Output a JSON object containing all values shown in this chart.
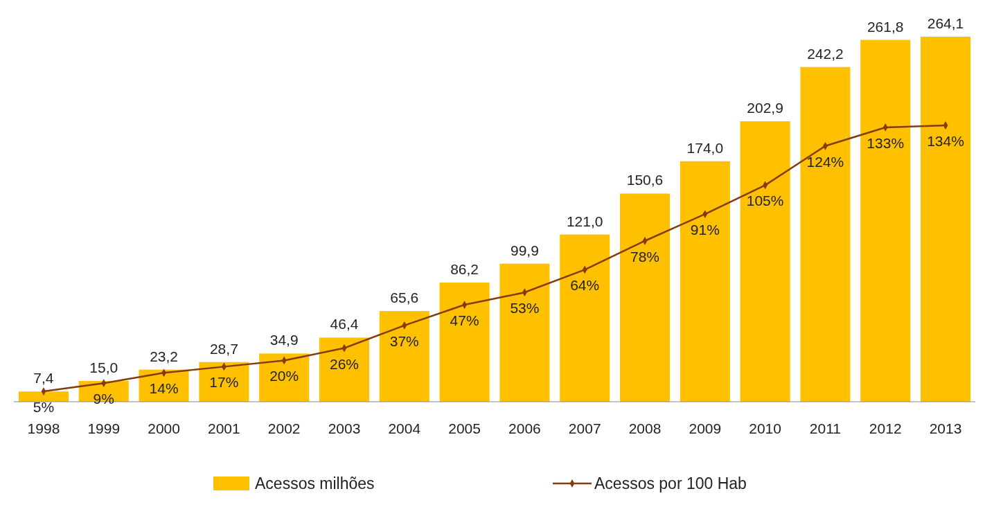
{
  "chart_data": {
    "type": "bar",
    "categories": [
      "1998",
      "1999",
      "2000",
      "2001",
      "2002",
      "2003",
      "2004",
      "2005",
      "2006",
      "2007",
      "2008",
      "2009",
      "2010",
      "2011",
      "2012",
      "2013"
    ],
    "series": [
      {
        "name": "Acessos milhões",
        "color": "#ffc000",
        "values": [
          7.4,
          15.0,
          23.2,
          28.7,
          34.9,
          46.4,
          65.6,
          86.2,
          99.9,
          121.0,
          150.6,
          174.0,
          202.9,
          242.2,
          261.8,
          264.1
        ],
        "value_labels": [
          "7,4",
          "15,0",
          "23,2",
          "28,7",
          "34,9",
          "46,4",
          "65,6",
          "86,2",
          "99,9",
          "121,0",
          "150,6",
          "174,0",
          "202,9",
          "242,2",
          "261,8",
          "264,1"
        ]
      },
      {
        "name": "Acessos por 100 Hab",
        "type": "line",
        "axis": "y2",
        "color": "#843c0c",
        "values": [
          5,
          9,
          14,
          17,
          20,
          26,
          37,
          47,
          53,
          64,
          78,
          91,
          105,
          124,
          133,
          134
        ],
        "value_labels": [
          "5%",
          "9%",
          "14%",
          "17%",
          "20%",
          "26%",
          "37%",
          "47%",
          "53%",
          "64%",
          "78%",
          "91%",
          "105%",
          "124%",
          "133%",
          "134%"
        ]
      }
    ],
    "legend": "bottom",
    "marker": "diamond",
    "line_style": "solid"
  }
}
